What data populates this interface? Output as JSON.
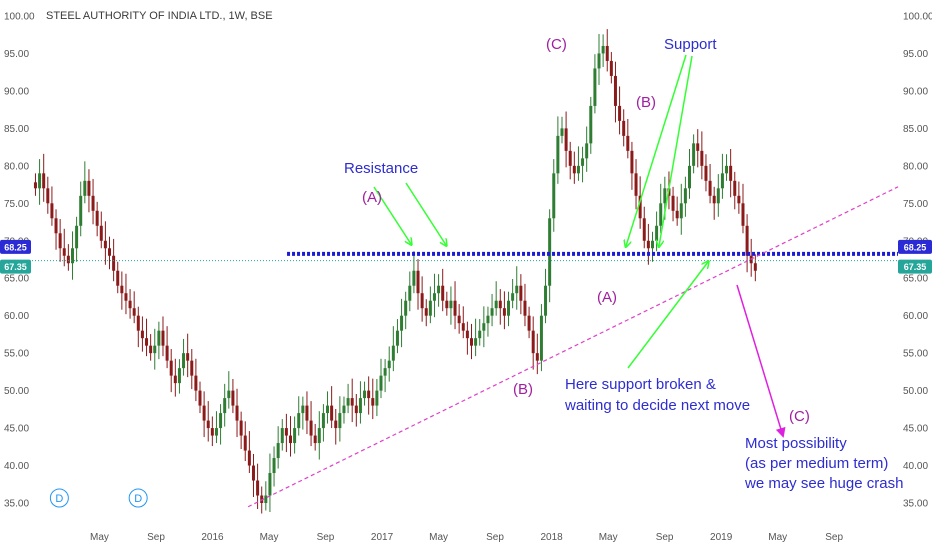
{
  "chart_data": {
    "type": "candlestick",
    "title": "STEEL AUTHORITY OF INDIA LTD., 1W, BSE",
    "ylim": [
      32,
      102
    ],
    "y_ticks": [
      35,
      40,
      45,
      50,
      55,
      60,
      65,
      70,
      75,
      80,
      85,
      90,
      95,
      100
    ],
    "y_tick_labels": [
      "35.00",
      "40.00",
      "45.00",
      "50.00",
      "55.00",
      "60.00",
      "65.00",
      "70.00",
      "75.00",
      "80.00",
      "85.00",
      "90.00",
      "95.00",
      "100.00"
    ],
    "x_ticks": [
      {
        "label": "May",
        "t": 0.0779
      },
      {
        "label": "Sep",
        "t": 0.1432
      },
      {
        "label": "2016",
        "t": 0.2084
      },
      {
        "label": "May",
        "t": 0.2737
      },
      {
        "label": "Sep",
        "t": 0.3389
      },
      {
        "label": "2017",
        "t": 0.4042
      },
      {
        "label": "May",
        "t": 0.4695
      },
      {
        "label": "Sep",
        "t": 0.5347
      },
      {
        "label": "2018",
        "t": 0.6
      },
      {
        "label": "May",
        "t": 0.6653
      },
      {
        "label": "Sep",
        "t": 0.7305
      },
      {
        "label": "2019",
        "t": 0.7958
      },
      {
        "label": "May",
        "t": 0.8611
      },
      {
        "label": "Sep",
        "t": 0.9263
      }
    ],
    "candle_series": [
      {
        "name": "SAIL",
        "series_start_t": 0.0,
        "week_step_t": 0.00475
      },
      "as close prices per week"
    ],
    "weekly_close": [
      77,
      79,
      77,
      75,
      73,
      71,
      69,
      68,
      67,
      69,
      72,
      76,
      78,
      76,
      74,
      72,
      70,
      69,
      68,
      66,
      64,
      63,
      62,
      61,
      60,
      58,
      57,
      56,
      55,
      56,
      58,
      56,
      54,
      52,
      51,
      53,
      55,
      54,
      52,
      50,
      48,
      46,
      45,
      44,
      45,
      47,
      49,
      50,
      48,
      46,
      44,
      42,
      40,
      38,
      36,
      35,
      36,
      39,
      41,
      43,
      45,
      44,
      43,
      45,
      47,
      48,
      46,
      44,
      43,
      45,
      47,
      48,
      46,
      45,
      47,
      48,
      49,
      48,
      47,
      49,
      50,
      49,
      48,
      50,
      52,
      53,
      54,
      56,
      58,
      60,
      62,
      64,
      66,
      63,
      61,
      60,
      62,
      63,
      64,
      62,
      61,
      62,
      60,
      59,
      58,
      57,
      56,
      57,
      58,
      59,
      60,
      61,
      62,
      61,
      60,
      62,
      63,
      64,
      62,
      60,
      58,
      55,
      54,
      60,
      64,
      73,
      79,
      84,
      85,
      82,
      80,
      79,
      80,
      81,
      83,
      88,
      93,
      95,
      96,
      94,
      92,
      88,
      86,
      84,
      82,
      79,
      76,
      73,
      70,
      69,
      70,
      72,
      75,
      77,
      76,
      74,
      73,
      75,
      77,
      80,
      83,
      82,
      80,
      78,
      76,
      75,
      77,
      79,
      80,
      78,
      76,
      75,
      72,
      68,
      67,
      66
    ],
    "reference_lines": [
      {
        "name": "support-resistance",
        "value": 68.25,
        "color": "#1a1adb",
        "style": "dotted-thick"
      },
      {
        "name": "last-price",
        "value": 67.35,
        "color": "#26a69a",
        "style": "dotted-thin"
      }
    ],
    "trendline": {
      "from": {
        "t": 0.2495,
        "y": 34.5
      },
      "to": {
        "t": 1.0,
        "y": 77.2
      },
      "color": "#e040c8",
      "style": "dashed"
    },
    "price_badges": [
      {
        "label": "68.25",
        "value": 68.25,
        "color": "#2b2bd6"
      },
      {
        "label": "67.35",
        "value": 67.35,
        "color": "#26a69a"
      }
    ],
    "dividend_markers": [
      {
        "label": "D",
        "t": 0.0316
      },
      {
        "label": "D",
        "t": 0.1226
      }
    ],
    "annotations": [
      {
        "text": "Resistance",
        "color": "#2d2dd0"
      },
      {
        "text": "(A)",
        "color": "#a020a0"
      },
      {
        "text": "(C)",
        "color": "#a020a0"
      },
      {
        "text": "Support",
        "color": "#2d2dd0"
      },
      {
        "text": "(B)",
        "color": "#a020a0"
      },
      {
        "text": "(A)",
        "color": "#a020a0"
      },
      {
        "text": "(B)",
        "color": "#a020a0"
      },
      {
        "text": "Here support broken &",
        "color": "#2d2dd0"
      },
      {
        "text": "waiting to decide next move",
        "color": "#2d2dd0"
      },
      {
        "text": "(C)",
        "color": "#a020a0"
      },
      {
        "text": "Most possibility",
        "color": "#2d2dd0"
      },
      {
        "text": "(as per medium term)",
        "color": "#2d2dd0"
      },
      {
        "text": "we may see huge crash",
        "color": "#2d2dd0"
      }
    ],
    "colors": {
      "up": "#2e7d32",
      "down": "#8b1a1a",
      "green_arrow": "#33ff33",
      "magenta_arrow": "#e020e0"
    }
  }
}
